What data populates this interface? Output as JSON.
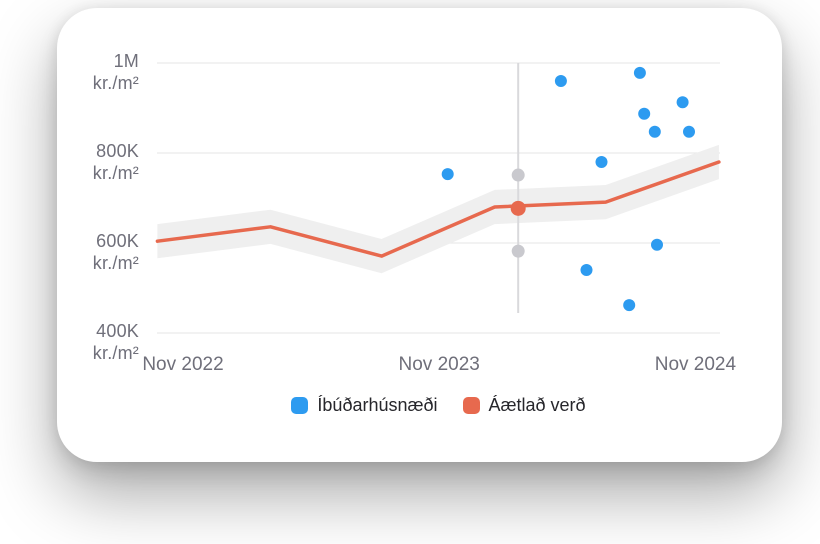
{
  "page": {
    "background": "#FFFFFF"
  },
  "card": {
    "background": "#FFFFFF"
  },
  "chart_data": {
    "type": "scatter",
    "title": "",
    "x_axis": {
      "unit": "months after Nov 2022",
      "ticks": [
        {
          "m": 0,
          "label": "Nov 2022"
        },
        {
          "m": 12,
          "label": "Nov 2023"
        },
        {
          "m": 24,
          "label": "Nov 2024"
        }
      ],
      "xlim_months": [
        -1.3,
        25.4
      ]
    },
    "y_axis": {
      "unit": "thousand kr./m²",
      "ticks": [
        {
          "v": 1000,
          "line1": "1M",
          "line2": "kr./m²"
        },
        {
          "v": 800,
          "line1": "800K",
          "line2": "kr./m²"
        },
        {
          "v": 600,
          "line1": "600K",
          "line2": "kr./m²"
        },
        {
          "v": 400,
          "line1": "400K",
          "line2": "kr./m²"
        }
      ],
      "ylim_thousand_kr": [
        378,
        1012
      ]
    },
    "grid": "horizontal",
    "legend_position": "bottom",
    "series": [
      {
        "name": "Íbúðarhúsnæði",
        "type": "scatter",
        "color": "#2D9BF0",
        "points": [
          {
            "m": 12.4,
            "v": 753
          },
          {
            "m": 17.7,
            "v": 960
          },
          {
            "m": 21.4,
            "v": 978
          },
          {
            "m": 23.4,
            "v": 913
          },
          {
            "m": 21.6,
            "v": 887
          },
          {
            "m": 22.1,
            "v": 847
          },
          {
            "m": 23.7,
            "v": 847
          },
          {
            "m": 19.6,
            "v": 780
          },
          {
            "m": 22.2,
            "v": 596
          },
          {
            "m": 18.9,
            "v": 540
          },
          {
            "m": 20.9,
            "v": 462
          }
        ]
      },
      {
        "name": "Áætlað verð",
        "type": "line",
        "color": "#E7694E",
        "band_halfwidth_v": 38,
        "band_color": "#EFEFEF",
        "points": [
          {
            "m": -1.2,
            "v": 604
          },
          {
            "m": 4.1,
            "v": 636
          },
          {
            "m": 9.3,
            "v": 571
          },
          {
            "m": 14.6,
            "v": 680
          },
          {
            "m": 19.8,
            "v": 691
          },
          {
            "m": 25.1,
            "v": 780
          }
        ]
      }
    ],
    "reference_marker": {
      "m": 15.7,
      "estimate_v": 677,
      "upper_v": 751,
      "lower_v": 582,
      "line_color": "#D9D9DC",
      "dot_color": "#C9C9CE"
    },
    "legend": [
      {
        "label": "Íbúðarhúsnæði",
        "color": "#2D9BF0"
      },
      {
        "label": "Áætlað verð",
        "color": "#E7694E"
      }
    ]
  }
}
